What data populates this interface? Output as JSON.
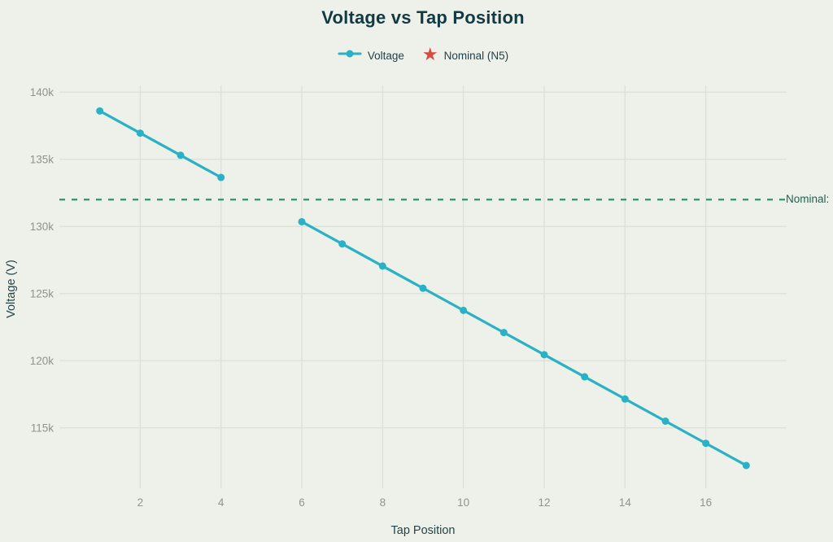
{
  "chart_data": {
    "type": "line",
    "title": "Voltage vs Tap Position",
    "xlabel": "Tap Position",
    "ylabel": "Voltage (V)",
    "xlim": [
      0,
      18
    ],
    "ylim": [
      110500,
      140500
    ],
    "grid": true,
    "legend_position": "top",
    "x_ticks": [
      {
        "value": 2,
        "label": "2"
      },
      {
        "value": 4,
        "label": "4"
      },
      {
        "value": 6,
        "label": "6"
      },
      {
        "value": 8,
        "label": "8"
      },
      {
        "value": 10,
        "label": "10"
      },
      {
        "value": 12,
        "label": "12"
      },
      {
        "value": 14,
        "label": "14"
      },
      {
        "value": 16,
        "label": "16"
      }
    ],
    "y_ticks": [
      {
        "value": 115000,
        "label": "115k"
      },
      {
        "value": 120000,
        "label": "120k"
      },
      {
        "value": 125000,
        "label": "125k"
      },
      {
        "value": 130000,
        "label": "130k"
      },
      {
        "value": 135000,
        "label": "135k"
      },
      {
        "value": 140000,
        "label": "140k"
      }
    ],
    "series": [
      {
        "name": "Voltage",
        "color": "#29b1c5",
        "marker": "circle",
        "segments": [
          {
            "x": [
              1,
              2,
              3,
              4
            ],
            "y": [
              138600,
              136950,
              135300,
              133650
            ]
          },
          {
            "x": [
              6,
              7,
              8,
              9,
              10,
              11,
              12,
              13,
              14,
              15,
              16,
              17
            ],
            "y": [
              130350,
              128700,
              127050,
              125400,
              123750,
              122100,
              120450,
              118800,
              117150,
              115500,
              113850,
              112200
            ]
          }
        ]
      }
    ],
    "nominal_line": {
      "value": 132000,
      "style": "dashed",
      "color": "#35906b",
      "annotation": "Nominal:"
    },
    "legend": {
      "items": [
        {
          "label": "Voltage",
          "marker": "line-dot",
          "color": "#29b1c5"
        },
        {
          "label": "Nominal (N5)",
          "marker": "star",
          "color": "#d84b3e"
        }
      ]
    },
    "colors": {
      "background": "#eef0ea",
      "grid": "#dcdfd6",
      "tick_label": "#8f948d",
      "title": "#123a42",
      "axis_label": "#24454b",
      "legend_label": "#21424a",
      "nominal_label": "#26604e"
    }
  }
}
